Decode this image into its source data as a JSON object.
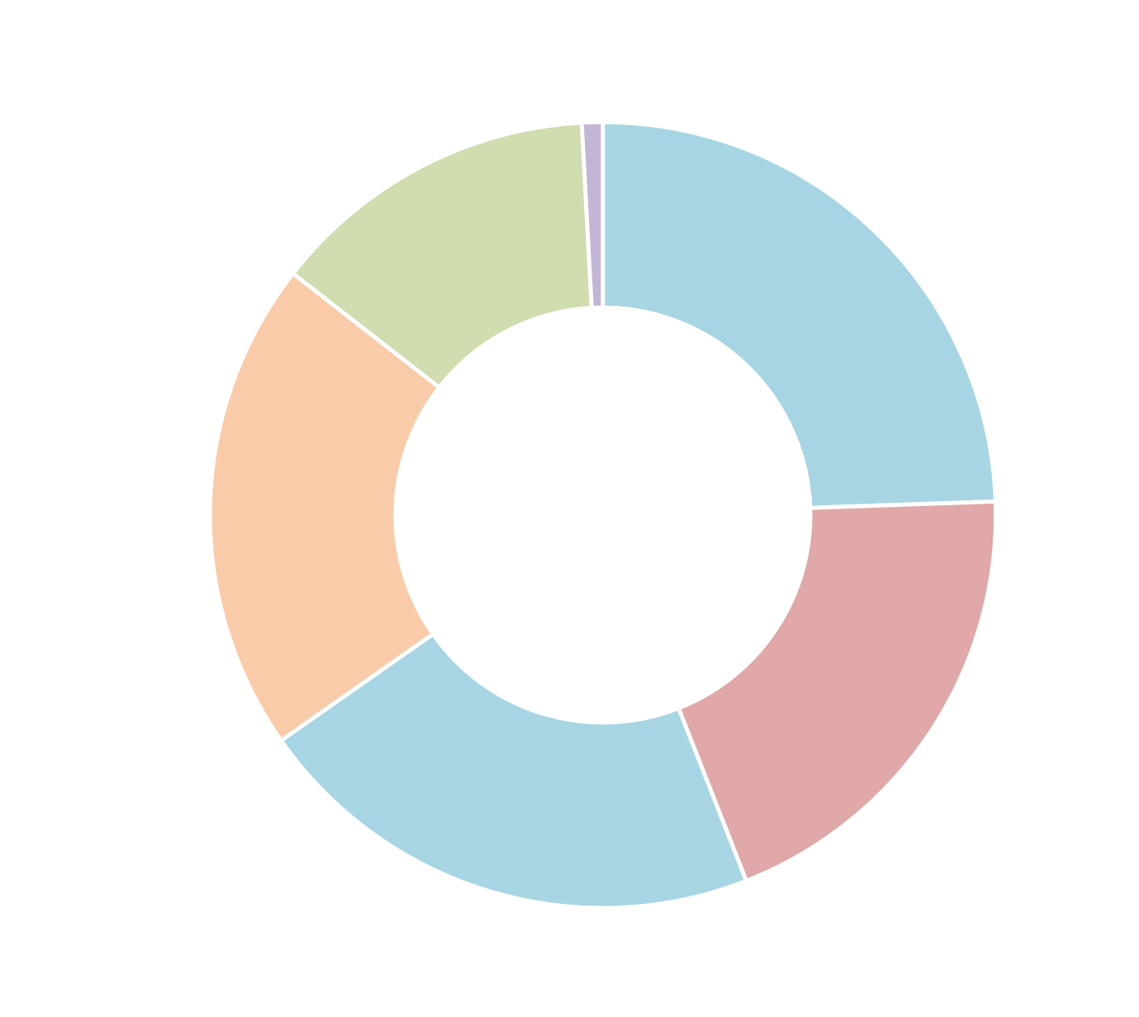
{
  "chart_data": {
    "type": "pie",
    "style": "donut",
    "start": "top",
    "direction": "clockwise",
    "legend": "none",
    "title": "",
    "slices": [
      {
        "value": 25.7,
        "color": "#a7d5e3"
      },
      {
        "value": 20.6,
        "color": "#e0a8a8"
      },
      {
        "value": 22.3,
        "color": "#a7d5e3"
      },
      {
        "value": 21.3,
        "color": "#facba8"
      },
      {
        "value": 14.3,
        "color": "#cfddaf"
      },
      {
        "value": 0.9,
        "color": "#c3b5d6"
      }
    ]
  }
}
